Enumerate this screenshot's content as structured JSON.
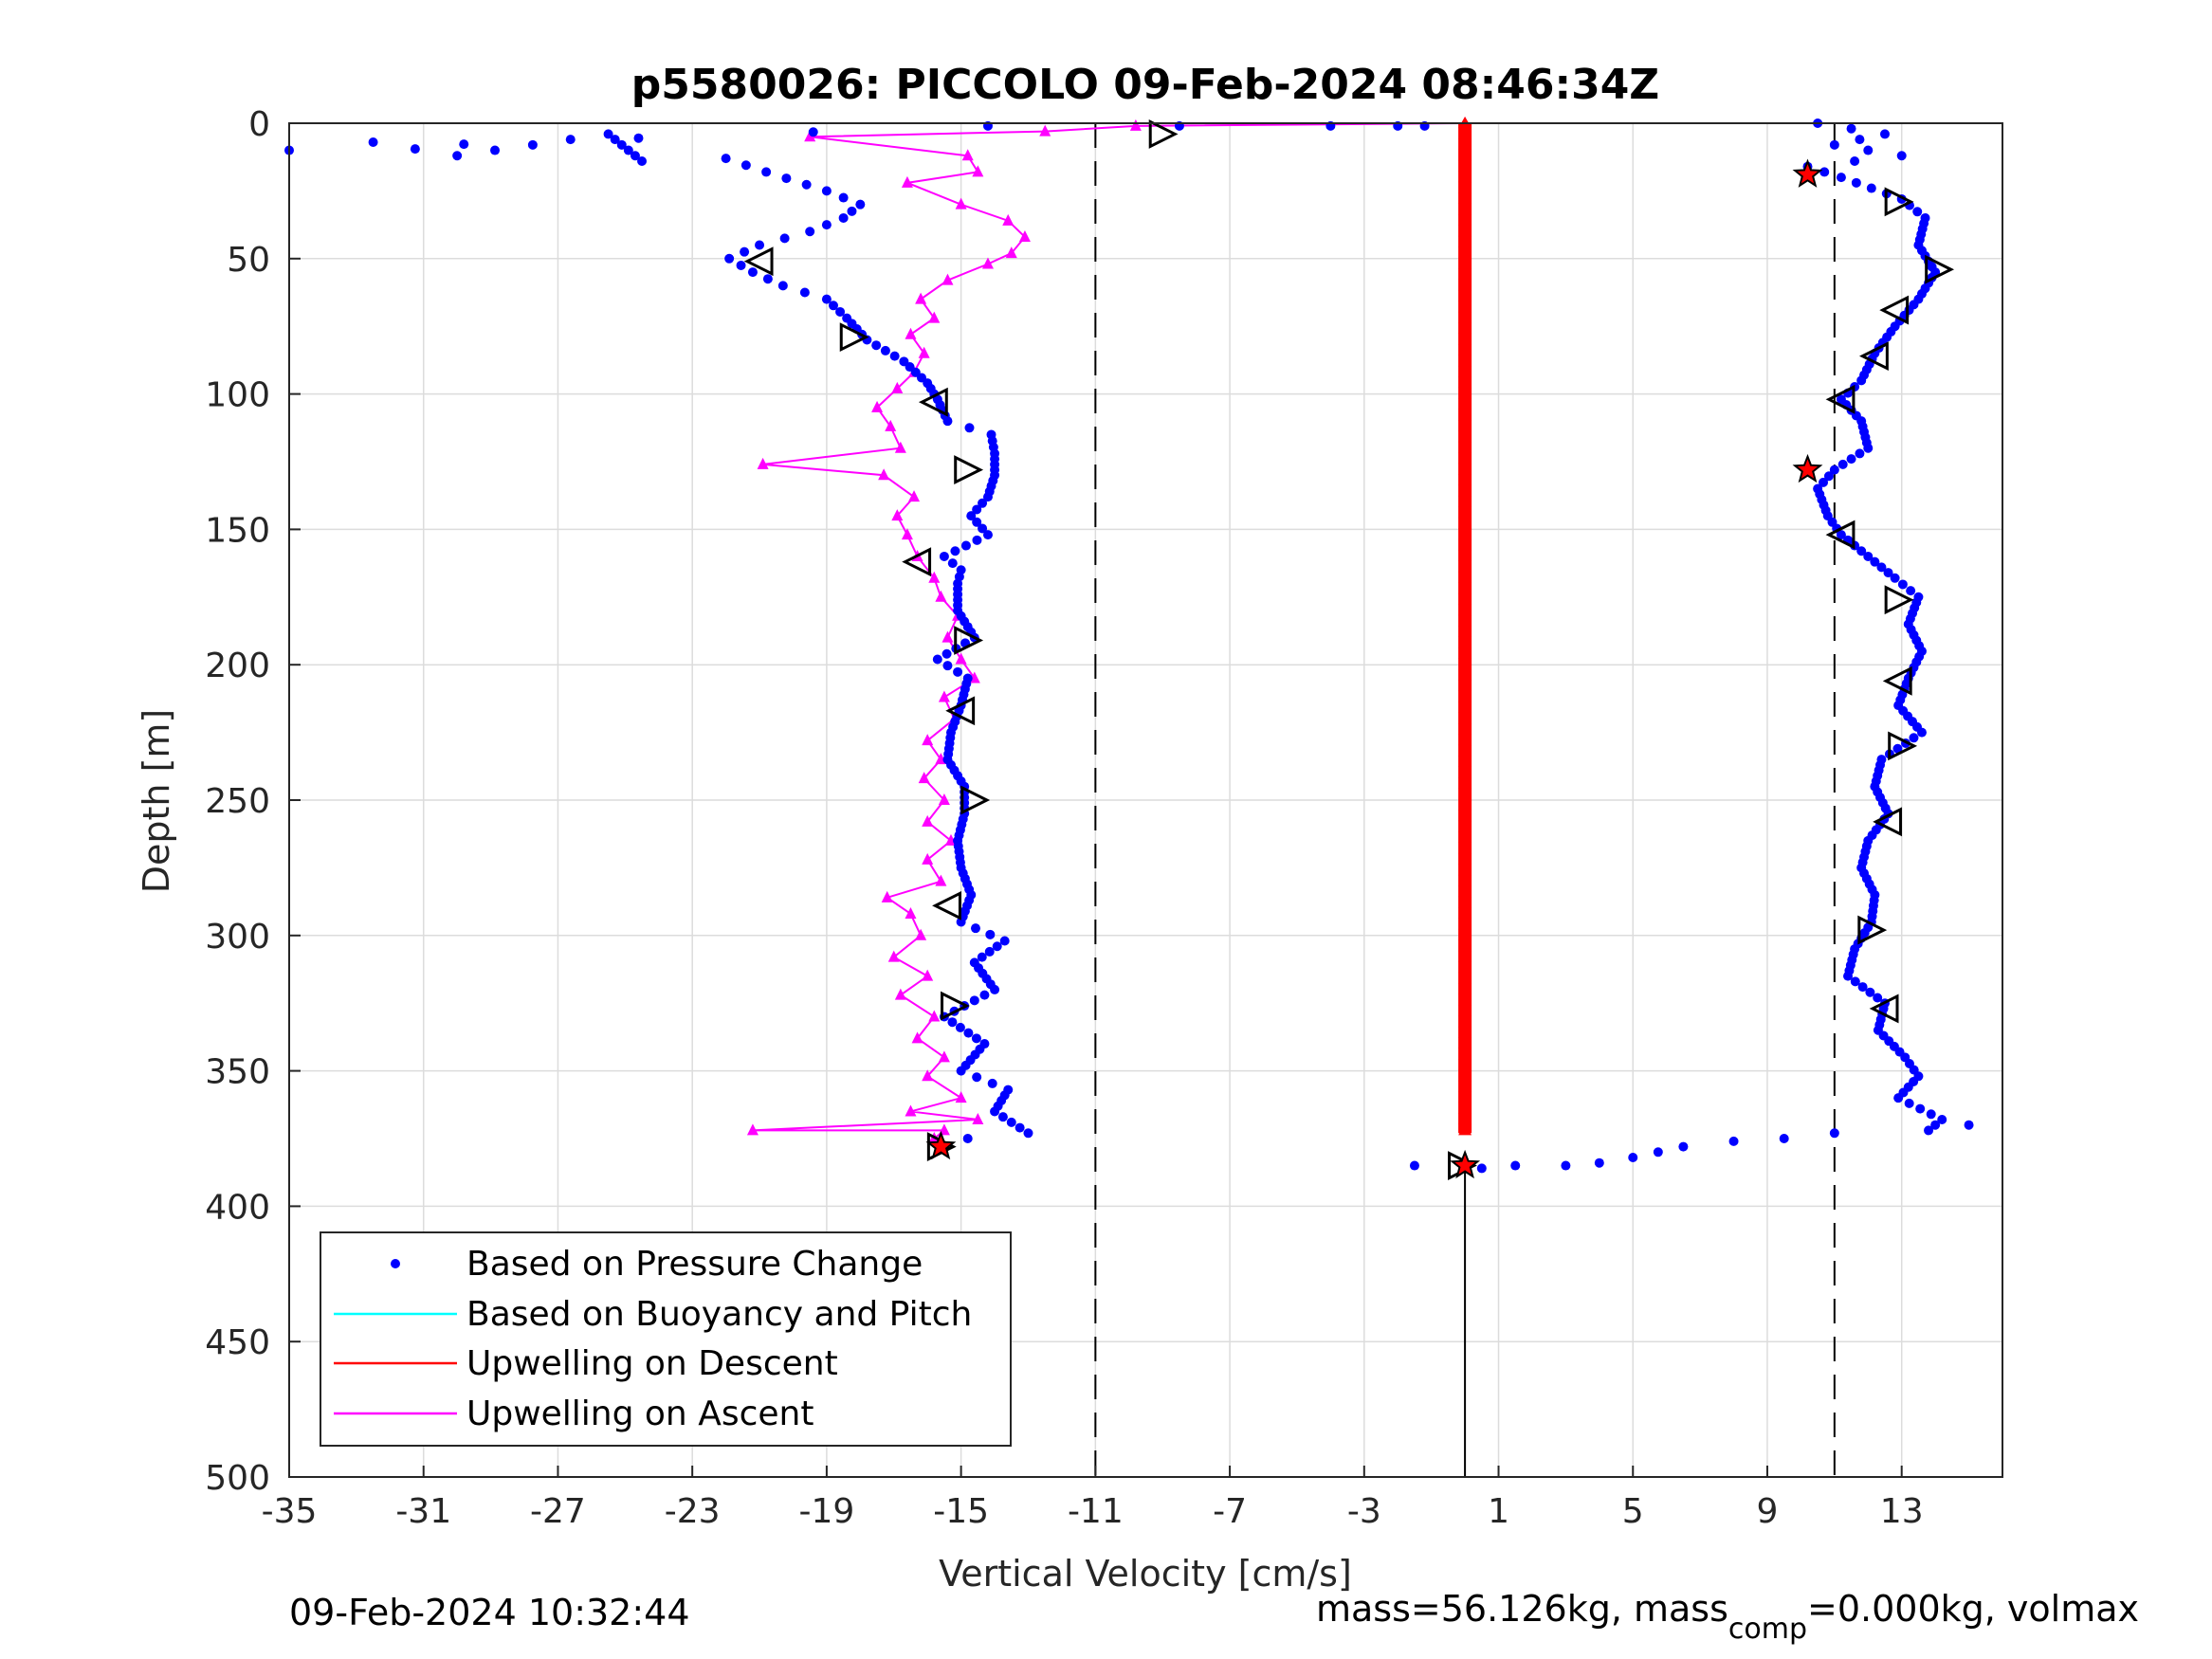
{
  "chart_data": {
    "type": "scatter",
    "title": "p5580026: PICCOLO 09-Feb-2024 08:46:34Z",
    "xlabel": "Vertical Velocity [cm/s]",
    "ylabel": "Depth [m]",
    "xlim": [
      -35,
      16
    ],
    "ylim": [
      0,
      500
    ],
    "y_reversed": true,
    "grid": true,
    "xticks": [
      -35,
      -31,
      -27,
      -23,
      -19,
      -15,
      -11,
      -7,
      -3,
      1,
      5,
      9,
      13
    ],
    "yticks": [
      0,
      50,
      100,
      150,
      200,
      250,
      300,
      350,
      400,
      450,
      500
    ],
    "reference_lines": {
      "dashed_x": [
        -11,
        11
      ],
      "solid_x_from_depth": {
        "x": 0,
        "from": 385,
        "to": 500
      }
    },
    "legend": {
      "placement": "bottom-left",
      "entries": [
        {
          "label": "Based on Pressure Change",
          "color": "#0000ff",
          "style": "dot"
        },
        {
          "label": "Based on Buoyancy and Pitch",
          "color": "#00ffff",
          "style": "line"
        },
        {
          "label": "Upwelling on Descent",
          "color": "#ff0000",
          "style": "line"
        },
        {
          "label": "Upwelling on Ascent",
          "color": "#ff00ff",
          "style": "line"
        }
      ]
    },
    "series": [
      {
        "name": "Based on Pressure Change",
        "color": "#0000ff",
        "descent_points": [
          [
            10.5,
            0
          ],
          [
            12.5,
            4
          ],
          [
            11,
            8
          ],
          [
            13,
            12
          ],
          [
            10.2,
            16
          ],
          [
            11.2,
            20
          ],
          [
            13,
            28
          ],
          [
            13.7,
            35
          ],
          [
            13.5,
            45
          ],
          [
            14,
            55
          ],
          [
            13.5,
            65
          ],
          [
            12.8,
            75
          ],
          [
            12.2,
            85
          ],
          [
            11.8,
            95
          ],
          [
            11.2,
            102
          ],
          [
            11.8,
            110
          ],
          [
            12,
            120
          ],
          [
            11,
            128
          ],
          [
            10.5,
            135
          ],
          [
            10.8,
            145
          ],
          [
            11.2,
            152
          ],
          [
            12,
            160
          ],
          [
            12.8,
            168
          ],
          [
            13.5,
            175
          ],
          [
            13.2,
            185
          ],
          [
            13.6,
            195
          ],
          [
            13.2,
            205
          ],
          [
            12.9,
            215
          ],
          [
            13.6,
            225
          ],
          [
            12.4,
            235
          ],
          [
            12.2,
            245
          ],
          [
            12.6,
            255
          ],
          [
            12,
            265
          ],
          [
            11.8,
            275
          ],
          [
            12.2,
            285
          ],
          [
            12.1,
            295
          ],
          [
            11.6,
            305
          ],
          [
            11.4,
            315
          ],
          [
            12.5,
            325
          ],
          [
            12.3,
            335
          ],
          [
            13.1,
            345
          ],
          [
            13.5,
            352
          ],
          [
            12.9,
            360
          ],
          [
            14.2,
            368
          ],
          [
            13.8,
            372
          ],
          [
            15,
            370
          ],
          [
            11,
            373
          ],
          [
            9.5,
            375
          ],
          [
            8,
            376
          ],
          [
            6.5,
            378
          ],
          [
            5,
            382
          ],
          [
            4,
            384
          ],
          [
            3,
            385
          ],
          [
            1.5,
            385
          ],
          [
            0.5,
            386
          ],
          [
            -1.5,
            385
          ]
        ],
        "ascent_points": [
          [
            -15.5,
            378
          ],
          [
            -14.8,
            375
          ],
          [
            -13,
            373
          ],
          [
            -14,
            365
          ],
          [
            -13.6,
            357
          ],
          [
            -15,
            350
          ],
          [
            -14.3,
            340
          ],
          [
            -15.5,
            330
          ],
          [
            -14,
            320
          ],
          [
            -14.6,
            310
          ],
          [
            -13.7,
            302
          ],
          [
            -15,
            295
          ],
          [
            -14.7,
            285
          ],
          [
            -15,
            275
          ],
          [
            -15.1,
            265
          ],
          [
            -14.9,
            255
          ],
          [
            -14.9,
            245
          ],
          [
            -15.4,
            235
          ],
          [
            -15.3,
            225
          ],
          [
            -15,
            215
          ],
          [
            -14.8,
            205
          ],
          [
            -15.7,
            198
          ],
          [
            -14.6,
            190
          ],
          [
            -15.1,
            180
          ],
          [
            -15.1,
            170
          ],
          [
            -15,
            165
          ],
          [
            -15.5,
            160
          ],
          [
            -14.2,
            152
          ],
          [
            -14.7,
            145
          ],
          [
            -14.2,
            138
          ],
          [
            -14,
            130
          ],
          [
            -14,
            122
          ],
          [
            -14.1,
            115
          ],
          [
            -15.4,
            110
          ],
          [
            -15.7,
            102
          ],
          [
            -16,
            96
          ],
          [
            -16.7,
            88
          ],
          [
            -17.8,
            80
          ],
          [
            -18.4,
            72
          ],
          [
            -19,
            65
          ],
          [
            -20.3,
            60
          ],
          [
            -21.2,
            55
          ],
          [
            -21.9,
            50
          ],
          [
            -21,
            45
          ],
          [
            -19.5,
            40
          ],
          [
            -18.5,
            35
          ],
          [
            -18,
            30
          ],
          [
            -19,
            25
          ],
          [
            -20.8,
            18
          ],
          [
            -22,
            13
          ],
          [
            -24.5,
            14
          ],
          [
            -25.5,
            4
          ],
          [
            -30,
            12
          ],
          [
            -32.5,
            7
          ],
          [
            -35,
            10
          ],
          [
            -14.2,
            1
          ],
          [
            -8.5,
            1
          ],
          [
            -4,
            1
          ],
          [
            -2,
            1
          ],
          [
            -1.2,
            1
          ]
        ]
      },
      {
        "name": "Upwelling on Descent",
        "color": "#ff0000",
        "x": 0,
        "depth_range": [
          0,
          373
        ]
      },
      {
        "name": "Upwelling on Ascent",
        "color": "#ff00ff",
        "points": [
          [
            -15.8,
            375
          ],
          [
            -15.5,
            372
          ],
          [
            -21.2,
            372
          ],
          [
            -14.5,
            368
          ],
          [
            -16.5,
            365
          ],
          [
            -15,
            360
          ],
          [
            -16,
            352
          ],
          [
            -15.5,
            345
          ],
          [
            -16.3,
            338
          ],
          [
            -15.8,
            330
          ],
          [
            -16.8,
            322
          ],
          [
            -16,
            315
          ],
          [
            -17,
            308
          ],
          [
            -16.2,
            300
          ],
          [
            -16.5,
            292
          ],
          [
            -17.2,
            286
          ],
          [
            -15.6,
            280
          ],
          [
            -16,
            272
          ],
          [
            -15.3,
            265
          ],
          [
            -16,
            258
          ],
          [
            -15.5,
            250
          ],
          [
            -16.1,
            242
          ],
          [
            -15.6,
            235
          ],
          [
            -16,
            228
          ],
          [
            -15.2,
            220
          ],
          [
            -15.5,
            212
          ],
          [
            -14.6,
            205
          ],
          [
            -15,
            198
          ],
          [
            -15.4,
            190
          ],
          [
            -15.1,
            182
          ],
          [
            -15.6,
            175
          ],
          [
            -15.8,
            168
          ],
          [
            -16.3,
            160
          ],
          [
            -16.6,
            152
          ],
          [
            -16.9,
            145
          ],
          [
            -16.4,
            138
          ],
          [
            -17.3,
            130
          ],
          [
            -20.9,
            126
          ],
          [
            -16.8,
            120
          ],
          [
            -17.1,
            112
          ],
          [
            -17.5,
            105
          ],
          [
            -16.9,
            98
          ],
          [
            -16.4,
            92
          ],
          [
            -16.1,
            85
          ],
          [
            -16.5,
            78
          ],
          [
            -15.8,
            72
          ],
          [
            -16.2,
            65
          ],
          [
            -15.4,
            58
          ],
          [
            -14.2,
            52
          ],
          [
            -13.5,
            48
          ],
          [
            -13.1,
            42
          ],
          [
            -13.6,
            36
          ],
          [
            -15,
            30
          ],
          [
            -16.6,
            22
          ],
          [
            -14.5,
            18
          ],
          [
            -14.8,
            12
          ],
          [
            -19.5,
            5
          ],
          [
            -12.5,
            3
          ],
          [
            -9.8,
            1
          ],
          [
            0,
            0
          ]
        ]
      }
    ],
    "triangle_markers": [
      [
        -9,
        4,
        "right"
      ],
      [
        -21,
        51,
        "left"
      ],
      [
        -18.2,
        79,
        "right"
      ],
      [
        -15.8,
        103,
        "left"
      ],
      [
        -14.8,
        128,
        "right"
      ],
      [
        -16.3,
        162,
        "left"
      ],
      [
        -14.8,
        191,
        "right"
      ],
      [
        -15,
        217,
        "left"
      ],
      [
        -14.6,
        250,
        "right"
      ],
      [
        -15.4,
        289,
        "left"
      ],
      [
        -15.2,
        326,
        "right"
      ],
      [
        -15.6,
        378,
        "right"
      ],
      [
        -0.1,
        385,
        "right"
      ],
      [
        12.9,
        29,
        "right"
      ],
      [
        14.1,
        54,
        "right"
      ],
      [
        12.8,
        69,
        "left"
      ],
      [
        12.2,
        86,
        "left"
      ],
      [
        11.2,
        102,
        "left"
      ],
      [
        11.2,
        152,
        "left"
      ],
      [
        12.9,
        176,
        "right"
      ],
      [
        12.9,
        206,
        "left"
      ],
      [
        13,
        230,
        "right"
      ],
      [
        12.6,
        258,
        "left"
      ],
      [
        12.1,
        298,
        "right"
      ],
      [
        12.5,
        327,
        "left"
      ]
    ],
    "red_star_markers": [
      [
        -15.6,
        378
      ],
      [
        10.2,
        19
      ],
      [
        10.2,
        128
      ],
      [
        0,
        385
      ]
    ]
  },
  "footer": {
    "timestamp": "09-Feb-2024 10:32:44",
    "mass_prefix": "mass=56.126kg, mass",
    "mass_sub": "comp",
    "mass_suffix": "=0.000kg, volmax"
  }
}
